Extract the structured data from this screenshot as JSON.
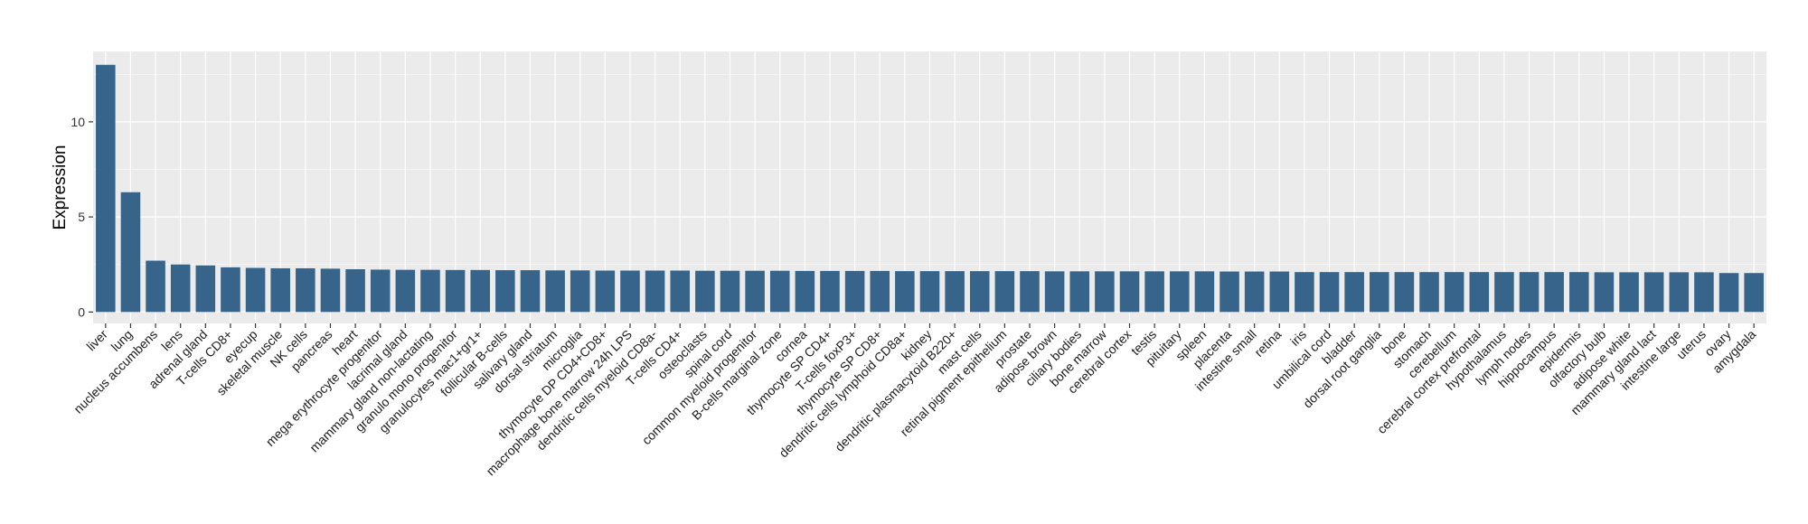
{
  "chart_data": {
    "type": "bar",
    "title": "",
    "xlabel": "",
    "ylabel": "Expression",
    "ylim": [
      -0.6,
      13.7
    ],
    "yticks": [
      0,
      5,
      10
    ],
    "grid": true,
    "bar_color": "#36648b",
    "panel_color": "#ebebeb",
    "grid_color": "#ffffff",
    "categories": [
      "liver",
      "lung",
      "nucleus accumbens",
      "lens",
      "adrenal gland",
      "T-cells CD8+",
      "eyecup",
      "skeletal muscle",
      "NK cells",
      "pancreas",
      "heart",
      "mega erythrocyte progenitor",
      "lacrimal gland",
      "mammary gland non-lactating",
      "granulo mono progenitor",
      "granulocytes mac1+gr1+",
      "follicular B-cells",
      "salivary gland",
      "dorsal striatum",
      "microglia",
      "thymocyte DP CD4+CD8+",
      "macrophage bone marrow 24h LPS",
      "dendritic cells myeloid CD8a-",
      "T-cells CD4+",
      "osteoclasts",
      "spinal cord",
      "common myeloid progenitor",
      "B-cells marginal zone",
      "cornea",
      "thymocyte SP CD4+",
      "T-cells foxP3+",
      "thymocyte SP CD8+",
      "dendritic cells lymphoid CD8a+",
      "kidney",
      "dendritic plasmacytoid B220+",
      "mast cells",
      "retinal pigment epithelium",
      "prostate",
      "adipose brown",
      "ciliary bodies",
      "bone marrow",
      "cerebral cortex",
      "testis",
      "pituitary",
      "spleen",
      "placenta",
      "intestine small",
      "retina",
      "iris",
      "umbilical cord",
      "bladder",
      "dorsal root ganglia",
      "bone",
      "stomach",
      "cerebellum",
      "cerebral cortex prefrontal",
      "hypothalamus",
      "lymph nodes",
      "hippocampus",
      "epidermis",
      "olfactory bulb",
      "adipose white",
      "mammary gland lact",
      "intestine large",
      "uterus",
      "ovary",
      "amygdala"
    ],
    "values": [
      13.0,
      6.3,
      2.7,
      2.5,
      2.45,
      2.35,
      2.32,
      2.3,
      2.3,
      2.28,
      2.25,
      2.23,
      2.22,
      2.22,
      2.21,
      2.21,
      2.2,
      2.2,
      2.19,
      2.19,
      2.18,
      2.18,
      2.18,
      2.18,
      2.17,
      2.17,
      2.17,
      2.17,
      2.16,
      2.16,
      2.16,
      2.16,
      2.15,
      2.15,
      2.15,
      2.15,
      2.15,
      2.15,
      2.14,
      2.14,
      2.14,
      2.14,
      2.14,
      2.14,
      2.14,
      2.13,
      2.13,
      2.13,
      2.1,
      2.1,
      2.1,
      2.1,
      2.1,
      2.1,
      2.1,
      2.1,
      2.1,
      2.1,
      2.1,
      2.1,
      2.09,
      2.09,
      2.09,
      2.09,
      2.09,
      2.05,
      2.05
    ]
  }
}
